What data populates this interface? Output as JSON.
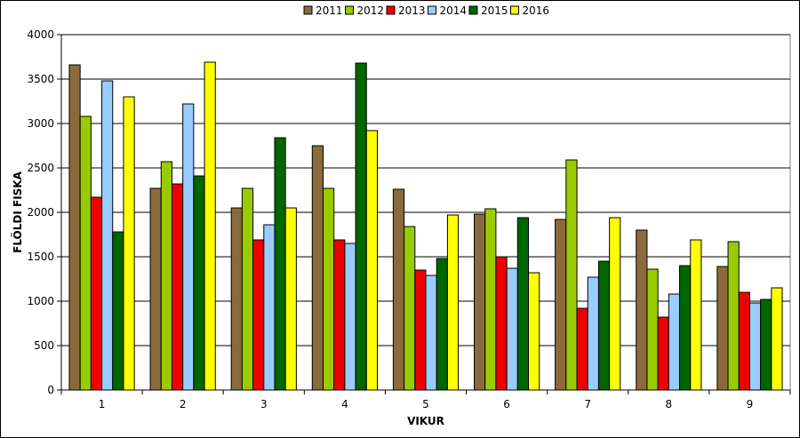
{
  "chart_data": {
    "type": "bar",
    "title": "",
    "xlabel": "VIKUR",
    "ylabel": "FLÖLDI FISKA",
    "ylim": [
      0,
      4000
    ],
    "yticks": [
      0,
      500,
      1000,
      1500,
      2000,
      2500,
      3000,
      3500,
      4000
    ],
    "grid": true,
    "legend": "top-center",
    "categories": [
      "1",
      "2",
      "3",
      "4",
      "5",
      "6",
      "7",
      "8",
      "9"
    ],
    "series": [
      {
        "name": "2011",
        "color": "#8B6B3D",
        "values": [
          3660,
          2270,
          2050,
          2750,
          2260,
          1980,
          1920,
          1800,
          1390
        ]
      },
      {
        "name": "2012",
        "color": "#99CC00",
        "values": [
          3080,
          2570,
          2270,
          2270,
          1840,
          2040,
          2590,
          1360,
          1670
        ]
      },
      {
        "name": "2013",
        "color": "#EE0000",
        "values": [
          2170,
          2320,
          1690,
          1690,
          1350,
          1500,
          920,
          820,
          1100
        ]
      },
      {
        "name": "2014",
        "color": "#99CCFF",
        "values": [
          3480,
          3220,
          1860,
          1650,
          1290,
          1370,
          1270,
          1080,
          980
        ]
      },
      {
        "name": "2015",
        "color": "#006600",
        "values": [
          1780,
          2410,
          2840,
          3680,
          1480,
          1940,
          1450,
          1400,
          1020
        ]
      },
      {
        "name": "2016",
        "color": "#FFFF00",
        "values": [
          3300,
          3690,
          2050,
          2920,
          1970,
          1320,
          1940,
          1690,
          1150
        ]
      }
    ]
  }
}
